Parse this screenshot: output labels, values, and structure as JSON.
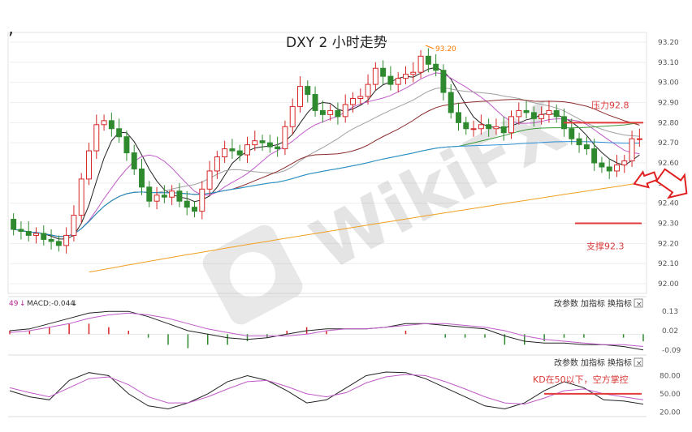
{
  "title": "DXY 2 小时走势",
  "corner_mark": ",",
  "watermark": "WikiFX",
  "main_chart": {
    "type": "candlestick",
    "y_ticks": [
      "93.20",
      "93.10",
      "93.00",
      "92.90",
      "92.80",
      "92.70",
      "92.60",
      "92.50",
      "92.40",
      "92.30",
      "92.20",
      "92.10",
      "92.00"
    ],
    "ylim": [
      91.96,
      93.24
    ],
    "peak_label": "93.20",
    "resistance_label": "压力92.8",
    "resistance_value": 92.8,
    "support_label": "支撑92.3",
    "support_value": 92.3
  },
  "macd_panel": {
    "header_value": "49",
    "header_label": "MACD:-0.044",
    "controls": [
      "改参数",
      "加指标",
      "换指标"
    ],
    "close": "×",
    "y_ticks": [
      "0.13",
      "0.02",
      "-0.09"
    ],
    "ylim": [
      -0.1,
      0.14
    ]
  },
  "kd_panel": {
    "controls": [
      "改参数",
      "加指标",
      "换指标"
    ],
    "close": "×",
    "annotation": "KD在50以下，空方掌控",
    "reference_value": 50,
    "y_ticks": [
      "80.00",
      "50.00",
      "20.00"
    ],
    "ylim": [
      15,
      90
    ]
  },
  "chart_data": {
    "type": "candlestick",
    "title": "DXY 2 小时走势",
    "x_count": 120,
    "closes": [
      92.27,
      92.26,
      92.24,
      92.25,
      92.22,
      92.21,
      92.19,
      92.24,
      92.34,
      92.52,
      92.66,
      92.79,
      92.81,
      92.77,
      92.73,
      92.65,
      92.57,
      92.48,
      92.41,
      92.44,
      92.43,
      92.46,
      92.41,
      92.38,
      92.36,
      92.47,
      92.56,
      92.63,
      92.67,
      92.66,
      92.64,
      92.69,
      92.71,
      92.7,
      92.68,
      92.67,
      92.78,
      92.88,
      92.98,
      92.94,
      92.86,
      92.84,
      92.86,
      92.83,
      92.89,
      92.92,
      92.93,
      92.99,
      93.07,
      93.03,
      92.99,
      93.02,
      93.04,
      93.05,
      93.13,
      93.09,
      93.06,
      92.95,
      92.85,
      92.8,
      92.77,
      92.77,
      92.79,
      92.77,
      92.78,
      92.75,
      92.83,
      92.86,
      92.85,
      92.82,
      92.84,
      92.86,
      92.83,
      92.77,
      92.72,
      92.69,
      92.67,
      92.6,
      92.58,
      92.56,
      92.59,
      92.61,
      92.72,
      92.72
    ],
    "ma_series": [
      "MA5 (black)",
      "MA10 (violet)",
      "MA20 (grey)",
      "MA30 (maroon)",
      "MA60 (green)",
      "MA120 (blue)",
      "MA250 (orange)"
    ],
    "macd": {
      "dif": [
        0.02,
        0.03,
        0.06,
        0.09,
        0.12,
        0.13,
        0.13,
        0.1,
        0.06,
        0.02,
        0.0,
        -0.02,
        -0.03,
        -0.02,
        0.0,
        0.02,
        0.03,
        0.03,
        0.03,
        0.04,
        0.06,
        0.06,
        0.05,
        0.04,
        0.03,
        -0.01,
        -0.04,
        -0.05,
        -0.05,
        -0.06,
        -0.06,
        -0.07,
        -0.09
      ],
      "dea": [
        0.01,
        0.02,
        0.04,
        0.06,
        0.09,
        0.11,
        0.12,
        0.11,
        0.09,
        0.06,
        0.03,
        0.01,
        -0.01,
        -0.01,
        -0.01,
        0.0,
        0.02,
        0.03,
        0.03,
        0.04,
        0.05,
        0.06,
        0.06,
        0.05,
        0.04,
        0.02,
        -0.01,
        -0.03,
        -0.04,
        -0.05,
        -0.06,
        -0.06,
        -0.07
      ]
    },
    "kd": {
      "k": [
        55,
        45,
        40,
        72,
        85,
        80,
        50,
        30,
        25,
        35,
        50,
        70,
        80,
        72,
        55,
        35,
        40,
        60,
        80,
        86,
        85,
        75,
        60,
        45,
        30,
        25,
        35,
        55,
        70,
        60,
        40,
        38,
        33
      ],
      "d": [
        60,
        52,
        45,
        60,
        75,
        78,
        65,
        45,
        35,
        35,
        45,
        58,
        70,
        72,
        62,
        50,
        45,
        52,
        68,
        78,
        82,
        80,
        70,
        58,
        45,
        35,
        33,
        43,
        55,
        58,
        50,
        45,
        40
      ]
    }
  }
}
